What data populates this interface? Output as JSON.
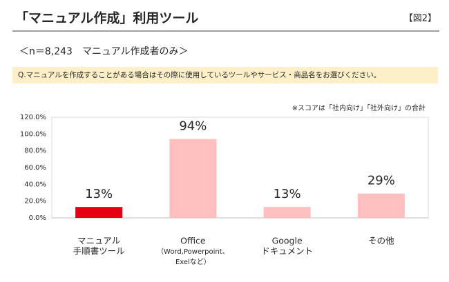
{
  "header": {
    "title": "「マニュアル作成」利用ツール",
    "figure": "【図2】"
  },
  "sample": "＜n＝8,243　マニュアル作成者のみ＞",
  "question": "Q.マニュアルを作成することがある場合はその際に使用しているツールやサービス・商品名をお選びください。",
  "note": "※スコアは「社内向け」「社外向け」の合計",
  "chart_data": {
    "type": "bar",
    "categories": [
      [
        "マニュアル",
        "手順書ツール"
      ],
      [
        "Office",
        "（Word,Powerpoint、",
        "Exelなど）"
      ],
      [
        "Google",
        "ドキュメント"
      ],
      [
        "その他"
      ]
    ],
    "values": [
      13,
      94,
      13,
      29
    ],
    "value_labels": [
      "13%",
      "94%",
      "13%",
      "29%"
    ],
    "colors": [
      "#e60012",
      "#ffbfbf",
      "#ffbfbf",
      "#ffbfbf"
    ],
    "label_colors": [
      "#e60012",
      "#404040",
      "#404040",
      "#404040"
    ],
    "ylim": [
      0,
      120
    ],
    "yticks": [
      {
        "value": 0,
        "label": "0.0%"
      },
      {
        "value": 20,
        "label": "20.0%"
      },
      {
        "value": 40,
        "label": "40.0%"
      },
      {
        "value": 60,
        "label": "60.0%"
      },
      {
        "value": 80,
        "label": "80.0%"
      },
      {
        "value": 100,
        "label": "100.0%"
      },
      {
        "value": 120,
        "label": "120.0%"
      }
    ],
    "grid": false
  }
}
